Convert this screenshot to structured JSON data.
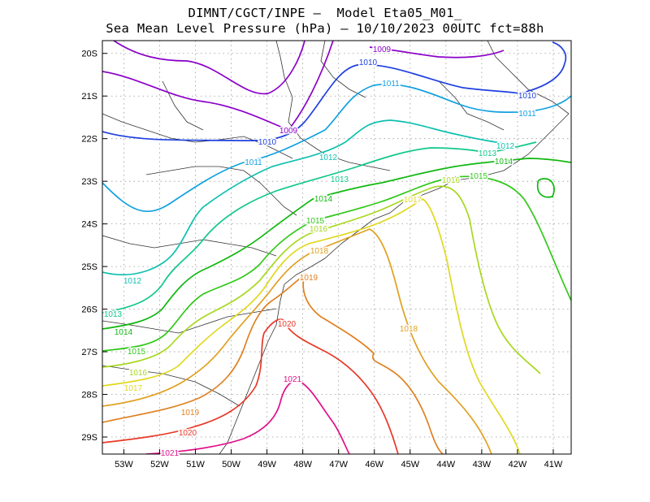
{
  "title": {
    "line1": "DIMNT/CGCT/INPE –  Model Eta05_M01_",
    "line2": "Sea Mean Level Pressure (hPa) – 10/10/2023 00UTC fct=88h"
  },
  "map": {
    "lon_range": [
      -53.6,
      -40.5
    ],
    "lat_range": [
      -29.4,
      -19.7
    ],
    "x_ticks": [
      "53W",
      "52W",
      "51W",
      "50W",
      "49W",
      "48W",
      "47W",
      "46W",
      "45W",
      "44W",
      "43W",
      "42W",
      "41W"
    ],
    "y_ticks": [
      "20S",
      "21S",
      "22S",
      "23S",
      "24S",
      "25S",
      "26S",
      "27S",
      "28S",
      "29S"
    ]
  },
  "contour_labels": [
    {
      "text": "1009",
      "color": "#8b00c8"
    },
    {
      "text": "1009",
      "color": "#8b00c8"
    },
    {
      "text": "1010",
      "color": "#1f3fe0"
    },
    {
      "text": "1010",
      "color": "#1f3fe0"
    },
    {
      "text": "1010",
      "color": "#1f3fe0"
    },
    {
      "text": "1011",
      "color": "#10a0e0"
    },
    {
      "text": "1011",
      "color": "#10a0e0"
    },
    {
      "text": "1011",
      "color": "#10a0e0"
    },
    {
      "text": "1012",
      "color": "#10c0b0"
    },
    {
      "text": "1012",
      "color": "#10c0b0"
    },
    {
      "text": "1012",
      "color": "#10c0b0"
    },
    {
      "text": "1013",
      "color": "#10c888"
    },
    {
      "text": "1013",
      "color": "#10c888"
    },
    {
      "text": "1013",
      "color": "#10c888"
    },
    {
      "text": "1014",
      "color": "#10b810"
    },
    {
      "text": "1014",
      "color": "#10b810"
    },
    {
      "text": "1014",
      "color": "#10b810"
    },
    {
      "text": "1015",
      "color": "#30c818"
    },
    {
      "text": "1015",
      "color": "#30c818"
    },
    {
      "text": "1015",
      "color": "#30c818"
    },
    {
      "text": "1016",
      "color": "#a8d820"
    },
    {
      "text": "1016",
      "color": "#a8d820"
    },
    {
      "text": "1016",
      "color": "#a8d820"
    },
    {
      "text": "1017",
      "color": "#e0d820"
    },
    {
      "text": "1017",
      "color": "#e0d820"
    },
    {
      "text": "1018",
      "color": "#e0a020"
    },
    {
      "text": "1018",
      "color": "#e0a020"
    },
    {
      "text": "1019",
      "color": "#e08020"
    },
    {
      "text": "1019",
      "color": "#e08020"
    },
    {
      "text": "1020",
      "color": "#e83828"
    },
    {
      "text": "1020",
      "color": "#e83828"
    },
    {
      "text": "1021",
      "color": "#e0108a"
    },
    {
      "text": "1021",
      "color": "#e0108a"
    }
  ]
}
